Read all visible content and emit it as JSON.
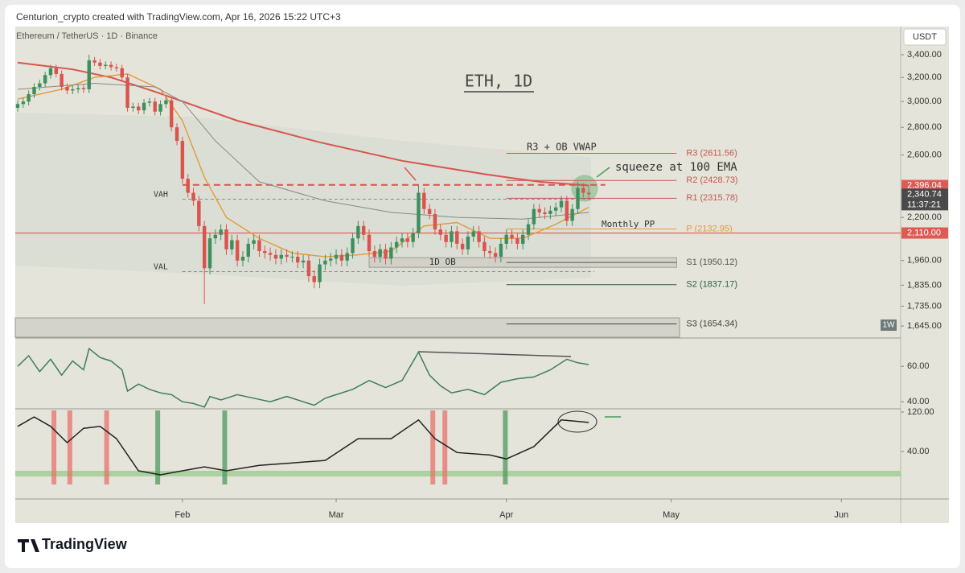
{
  "header": {
    "byline": "Centurion_crypto created with TradingView.com, Apr 16, 2026 15:22 UTC+3",
    "symbol": "Ethereum / TetherUS · 1D · Binance",
    "currency": "USDT"
  },
  "footer": {
    "brand": "TradingView"
  },
  "annotations": {
    "title": "ETH, 1D",
    "r3_note": "R3 + OB VWAP",
    "squeeze": "squeeze at 100 EMA",
    "monthly_pp": "Monthly PP",
    "weekly": "1W"
  },
  "chart_data": [
    {
      "type": "candlestick",
      "log_scale": true,
      "xlim": [
        -0.44,
        160.8
      ],
      "xticks": [
        {
          "value": 30,
          "label": "Feb"
        },
        {
          "value": 58,
          "label": "Mar"
        },
        {
          "value": 89,
          "label": "Apr"
        },
        {
          "value": 119,
          "label": "May"
        },
        {
          "value": 150,
          "label": "Jun"
        }
      ],
      "ylim": [
        1593,
        3667
      ],
      "yticks": [
        {
          "value": 3400,
          "label": "3,400.00"
        },
        {
          "value": 3200,
          "label": "3,200.00"
        },
        {
          "value": 3000,
          "label": "3,000.00"
        },
        {
          "value": 2800,
          "label": "2,800.00"
        },
        {
          "value": 2600,
          "label": "2,600.00"
        },
        {
          "value": 2200,
          "label": "2,200.00"
        },
        {
          "value": 1960,
          "label": "1,960.00"
        },
        {
          "value": 1835,
          "label": "1,835.00"
        },
        {
          "value": 1735,
          "label": "1,735.00"
        },
        {
          "value": 1645,
          "label": "1,645.00"
        }
      ],
      "up_color": "#3f8f5e",
      "down_color": "#d9544d",
      "ohlc": [
        [
          2950,
          3010,
          2920,
          2980
        ],
        [
          2980,
          3030,
          2950,
          3000
        ],
        [
          3000,
          3090,
          2970,
          3060
        ],
        [
          3060,
          3150,
          3030,
          3120
        ],
        [
          3120,
          3180,
          3090,
          3150
        ],
        [
          3150,
          3250,
          3120,
          3220
        ],
        [
          3220,
          3310,
          3190,
          3280
        ],
        [
          3280,
          3310,
          3200,
          3230
        ],
        [
          3230,
          3260,
          3090,
          3120
        ],
        [
          3120,
          3150,
          3060,
          3090
        ],
        [
          3090,
          3130,
          3060,
          3100
        ],
        [
          3100,
          3140,
          3070,
          3110
        ],
        [
          3110,
          3140,
          3070,
          3100
        ],
        [
          3100,
          3400,
          3070,
          3350
        ],
        [
          3350,
          3380,
          3300,
          3330
        ],
        [
          3330,
          3360,
          3270,
          3300
        ],
        [
          3300,
          3340,
          3270,
          3310
        ],
        [
          3310,
          3340,
          3260,
          3290
        ],
        [
          3290,
          3320,
          3250,
          3280
        ],
        [
          3280,
          3310,
          3170,
          3200
        ],
        [
          3200,
          3230,
          2920,
          2950
        ],
        [
          2950,
          2990,
          2920,
          2960
        ],
        [
          2960,
          2990,
          2900,
          2930
        ],
        [
          2930,
          3020,
          2900,
          2990
        ],
        [
          2990,
          3030,
          2960,
          3000
        ],
        [
          3000,
          3030,
          2890,
          2920
        ],
        [
          2920,
          3010,
          2890,
          2980
        ],
        [
          2980,
          3040,
          2950,
          3010
        ],
        [
          3010,
          3040,
          2770,
          2800
        ],
        [
          2800,
          2830,
          2670,
          2700
        ],
        [
          2700,
          2730,
          2410,
          2440
        ],
        [
          2440,
          2470,
          2320,
          2350
        ],
        [
          2350,
          2380,
          2270,
          2300
        ],
        [
          2300,
          2330,
          2120,
          2150
        ],
        [
          2150,
          2180,
          1745,
          1920
        ],
        [
          1920,
          2110,
          1890,
          2080
        ],
        [
          2080,
          2130,
          2050,
          2100
        ],
        [
          2100,
          2160,
          2070,
          2130
        ],
        [
          2130,
          2160,
          1990,
          2020
        ],
        [
          2020,
          2100,
          1990,
          2070
        ],
        [
          2070,
          2100,
          1930,
          1960
        ],
        [
          1960,
          2010,
          1930,
          1980
        ],
        [
          1980,
          2080,
          1950,
          2050
        ],
        [
          2050,
          2100,
          2020,
          2070
        ],
        [
          2070,
          2100,
          1980,
          2010
        ],
        [
          2010,
          2040,
          1970,
          2000
        ],
        [
          2000,
          2030,
          1960,
          1990
        ],
        [
          1990,
          2020,
          1940,
          1970
        ],
        [
          1970,
          2020,
          1940,
          1990
        ],
        [
          1990,
          2020,
          1950,
          1980
        ],
        [
          1980,
          2010,
          1950,
          1980
        ],
        [
          1980,
          2010,
          1920,
          1950
        ],
        [
          1950,
          1990,
          1920,
          1960
        ],
        [
          1960,
          1990,
          1850,
          1880
        ],
        [
          1880,
          1910,
          1820,
          1850
        ],
        [
          1850,
          1970,
          1820,
          1940
        ],
        [
          1940,
          1990,
          1910,
          1960
        ],
        [
          1960,
          2000,
          1930,
          1970
        ],
        [
          1970,
          2020,
          1940,
          1990
        ],
        [
          1990,
          2020,
          1930,
          1960
        ],
        [
          1960,
          2030,
          1930,
          2000
        ],
        [
          2000,
          2110,
          1970,
          2080
        ],
        [
          2080,
          2180,
          2050,
          2150
        ],
        [
          2150,
          2180,
          2070,
          2100
        ],
        [
          2100,
          2130,
          1980,
          2010
        ],
        [
          2010,
          2040,
          1950,
          1980
        ],
        [
          1980,
          2050,
          1950,
          2020
        ],
        [
          2020,
          2050,
          1940,
          1970
        ],
        [
          1970,
          2060,
          1940,
          2030
        ],
        [
          2030,
          2090,
          2000,
          2060
        ],
        [
          2060,
          2110,
          2030,
          2080
        ],
        [
          2080,
          2110,
          2030,
          2060
        ],
        [
          2060,
          2140,
          2030,
          2110
        ],
        [
          2110,
          2400,
          2080,
          2350
        ],
        [
          2350,
          2380,
          2220,
          2250
        ],
        [
          2250,
          2280,
          2190,
          2220
        ],
        [
          2220,
          2250,
          2100,
          2130
        ],
        [
          2130,
          2160,
          2070,
          2100
        ],
        [
          2100,
          2130,
          2030,
          2060
        ],
        [
          2060,
          2150,
          2030,
          2120
        ],
        [
          2120,
          2150,
          2020,
          2050
        ],
        [
          2050,
          2080,
          1990,
          2020
        ],
        [
          2020,
          2120,
          1990,
          2090
        ],
        [
          2090,
          2150,
          2060,
          2120
        ],
        [
          2120,
          2150,
          2030,
          2060
        ],
        [
          2060,
          2090,
          1980,
          2010
        ],
        [
          2010,
          2040,
          1970,
          2000
        ],
        [
          2000,
          2030,
          1950,
          1980
        ],
        [
          1980,
          2080,
          1950,
          2050
        ],
        [
          2050,
          2130,
          2020,
          2100
        ],
        [
          2100,
          2130,
          2050,
          2080
        ],
        [
          2080,
          2110,
          2020,
          2050
        ],
        [
          2050,
          2130,
          2020,
          2100
        ],
        [
          2100,
          2190,
          2070,
          2160
        ],
        [
          2160,
          2280,
          2130,
          2250
        ],
        [
          2250,
          2280,
          2200,
          2230
        ],
        [
          2230,
          2260,
          2190,
          2220
        ],
        [
          2220,
          2270,
          2190,
          2240
        ],
        [
          2240,
          2290,
          2210,
          2260
        ],
        [
          2260,
          2330,
          2230,
          2300
        ],
        [
          2300,
          2330,
          2150,
          2180
        ],
        [
          2180,
          2280,
          2150,
          2250
        ],
        [
          2250,
          2420,
          2220,
          2380
        ],
        [
          2380,
          2410,
          2320,
          2350
        ],
        [
          2350,
          2390,
          2310,
          2340.74
        ]
      ],
      "lines": [
        {
          "color": "#d9544d",
          "width": 2,
          "x": [
            0,
            10,
            17,
            25,
            40,
            55,
            70,
            85,
            95,
            104
          ],
          "values": [
            3330,
            3270,
            3200,
            3080,
            2850,
            2690,
            2560,
            2470,
            2420,
            2396.04
          ]
        },
        {
          "color": "#e39b3a",
          "width": 1.4,
          "x": [
            0,
            8,
            14,
            20,
            26,
            30,
            34,
            38,
            44,
            50,
            56,
            62,
            68,
            74,
            80,
            86,
            92,
            98,
            104
          ],
          "values": [
            3020,
            3100,
            3200,
            3230,
            3100,
            2850,
            2450,
            2200,
            2080,
            2000,
            1980,
            1990,
            2010,
            2150,
            2170,
            2080,
            2080,
            2160,
            2260
          ]
        },
        {
          "color": "#8a8a84",
          "width": 1,
          "x": [
            0,
            14,
            25,
            30,
            36,
            44,
            56,
            68,
            80,
            92,
            104
          ],
          "values": [
            3100,
            3150,
            3120,
            3000,
            2700,
            2420,
            2300,
            2230,
            2200,
            2190,
            2230
          ]
        }
      ],
      "price_badges": [
        {
          "value": 2396.04,
          "label": "2,396.04",
          "color": "#e05a55"
        },
        {
          "value": 2340.74,
          "label": "2,340.74",
          "color": "#4a4a4a"
        },
        {
          "value": 2110,
          "label": "2,110.00",
          "color": "#e05a55"
        }
      ],
      "countdown": "11:37:21",
      "resistance": {
        "value": 2400,
        "x": [
          30,
          107
        ],
        "color": "#d9544d"
      },
      "value_area": {
        "x": [
          30,
          105
        ],
        "levels": [
          {
            "label": "VAH",
            "value": 2310
          },
          {
            "label": "VAL",
            "value": 1903
          }
        ]
      },
      "order_block": {
        "label": "1D OB",
        "x": [
          64,
          120
        ],
        "range": [
          1925,
          1975
        ]
      },
      "pivots": {
        "x": [
          89,
          120
        ],
        "levels": [
          {
            "label": "R3 (2611.56)",
            "value": 2611.56,
            "color": "#c9564f"
          },
          {
            "label": "R2 (2428.73)",
            "value": 2428.73,
            "color": "#c9564f"
          },
          {
            "label": "R1 (2315.78)",
            "value": 2315.78,
            "color": "#c9564f"
          },
          {
            "label": "P (2132.95)",
            "value": 2132.95,
            "color": "#e39b3a"
          },
          {
            "label": "S1 (1950.12)",
            "value": 1950.12,
            "color": "#555555"
          },
          {
            "label": "S2 (1837.17)",
            "value": 1837.17,
            "color": "#2f5d44"
          },
          {
            "label": "S3 (1654.34)",
            "value": 1654.34,
            "color": "#444444"
          }
        ]
      }
    },
    {
      "type": "line",
      "xlim": [
        -0.44,
        160.8
      ],
      "ylim": [
        36,
        76
      ],
      "yticks": [
        {
          "value": 60,
          "label": "60.00"
        },
        {
          "value": 40,
          "label": "40.00"
        }
      ],
      "series": [
        {
          "color": "#3f7d5c",
          "x": [
            0,
            2,
            4,
            6,
            8,
            10,
            12,
            13,
            15,
            17,
            19,
            20,
            22,
            24,
            26,
            28,
            30,
            32,
            34,
            35,
            37,
            40,
            43,
            46,
            49,
            52,
            54,
            56,
            58,
            61,
            64,
            67,
            70,
            73,
            75,
            77,
            79,
            82,
            85,
            88,
            91,
            94,
            97,
            100,
            102,
            104
          ],
          "values": [
            60,
            66,
            57,
            64,
            55,
            63,
            58,
            70,
            65,
            63,
            58,
            46,
            50,
            47,
            45,
            44,
            40,
            39,
            37,
            43,
            41,
            44,
            42,
            40,
            43,
            40,
            38,
            42,
            44,
            47,
            52,
            48,
            52,
            68,
            55,
            49,
            45,
            47,
            44,
            51,
            53,
            54,
            58,
            64,
            62,
            61
          ]
        }
      ]
    },
    {
      "type": "line",
      "xlim": [
        -0.44,
        160.8
      ],
      "ylim": [
        -56,
        126.5
      ],
      "yticks": [
        {
          "value": 120,
          "label": "120.00"
        },
        {
          "value": 40,
          "label": "40.00"
        }
      ],
      "series": [
        {
          "color": "#222222",
          "x": [
            0,
            3,
            6,
            9,
            12,
            15,
            18,
            22,
            26,
            30,
            34,
            38,
            44,
            50,
            56,
            62,
            68,
            73,
            76,
            80,
            86,
            89,
            94,
            99,
            104
          ],
          "values": [
            91,
            110,
            91,
            58,
            87,
            91,
            66,
            1,
            -7,
            1,
            9,
            1,
            12,
            17,
            22,
            66,
            66,
            104,
            66,
            38,
            33,
            25,
            50,
            104,
            99
          ]
        }
      ],
      "signals": [
        {
          "color": "#e8736b",
          "x": [
            6.6,
            9.5,
            16.2,
            75.6,
            77.8
          ]
        },
        {
          "color": "#4f9a5e",
          "x": [
            25.5,
            37.7,
            88.8
          ]
        }
      ]
    }
  ]
}
